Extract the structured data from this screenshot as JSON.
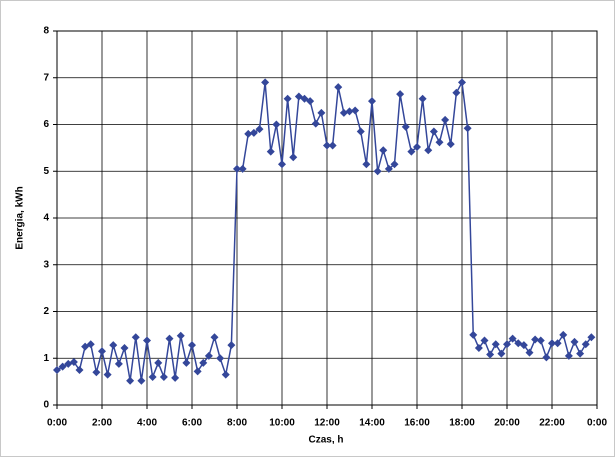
{
  "chart_data": {
    "type": "line",
    "x_label": "Czas, h",
    "y_label": "Energia, kWh",
    "x": [
      0,
      0.25,
      0.5,
      0.75,
      1,
      1.25,
      1.5,
      1.75,
      2,
      2.25,
      2.5,
      2.75,
      3,
      3.25,
      3.5,
      3.75,
      4,
      4.25,
      4.5,
      4.75,
      5,
      5.25,
      5.5,
      5.75,
      6,
      6.25,
      6.5,
      6.75,
      7,
      7.25,
      7.5,
      7.75,
      8,
      8.25,
      8.5,
      8.75,
      9,
      9.25,
      9.5,
      9.75,
      10,
      10.25,
      10.5,
      10.75,
      11,
      11.25,
      11.5,
      11.75,
      12,
      12.25,
      12.5,
      12.75,
      13,
      13.25,
      13.5,
      13.75,
      14,
      14.25,
      14.5,
      14.75,
      15,
      15.25,
      15.5,
      15.75,
      16,
      16.25,
      16.5,
      16.75,
      17,
      17.25,
      17.5,
      17.75,
      18,
      18.25,
      18.5,
      18.75,
      19,
      19.25,
      19.5,
      19.75,
      20,
      20.25,
      20.5,
      20.75,
      21,
      21.25,
      21.5,
      21.75,
      22,
      22.25,
      22.5,
      22.75,
      23,
      23.25,
      23.5,
      23.75
    ],
    "series": [
      {
        "color": "#34479a",
        "values": [
          0.75,
          0.82,
          0.88,
          0.92,
          0.75,
          1.25,
          1.3,
          0.7,
          1.15,
          0.65,
          1.28,
          0.88,
          1.22,
          0.52,
          1.45,
          0.52,
          1.38,
          0.6,
          0.9,
          0.6,
          1.42,
          0.58,
          1.48,
          0.9,
          1.28,
          0.72,
          0.9,
          1.05,
          1.45,
          1.0,
          0.65,
          1.28,
          5.05,
          5.05,
          5.8,
          5.82,
          5.9,
          6.9,
          5.42,
          6.0,
          5.15,
          6.55,
          5.3,
          6.6,
          6.55,
          6.5,
          6.02,
          6.25,
          5.55,
          5.55,
          6.8,
          6.25,
          6.28,
          6.3,
          5.85,
          5.15,
          6.5,
          5.0,
          5.45,
          5.05,
          5.15,
          6.65,
          5.95,
          5.42,
          5.52,
          6.55,
          5.45,
          5.85,
          5.62,
          6.1,
          5.58,
          6.68,
          6.9,
          5.92,
          1.5,
          1.22,
          1.38,
          1.08,
          1.3,
          1.1,
          1.3,
          1.42,
          1.32,
          1.28,
          1.12,
          1.4,
          1.38,
          1.02,
          1.32,
          1.32,
          1.5,
          1.05,
          1.35,
          1.1,
          1.3,
          1.45
        ]
      }
    ],
    "xlim": [
      0,
      24
    ],
    "xticks": [
      {
        "value": 0,
        "label": "0:00"
      },
      {
        "value": 2,
        "label": "2:00"
      },
      {
        "value": 4,
        "label": "4:00"
      },
      {
        "value": 6,
        "label": "6:00"
      },
      {
        "value": 8,
        "label": "8:00"
      },
      {
        "value": 10,
        "label": "10:00"
      },
      {
        "value": 12,
        "label": "12:00"
      },
      {
        "value": 14,
        "label": "14:00"
      },
      {
        "value": 16,
        "label": "16:00"
      },
      {
        "value": 18,
        "label": "18:00"
      },
      {
        "value": 20,
        "label": "20:00"
      },
      {
        "value": 22,
        "label": "22:00"
      },
      {
        "value": 24,
        "label": "0:00"
      }
    ],
    "ylim": [
      0,
      8
    ],
    "yticks": [
      0,
      1,
      2,
      3,
      4,
      5,
      6,
      7,
      8
    ],
    "grid": true
  }
}
